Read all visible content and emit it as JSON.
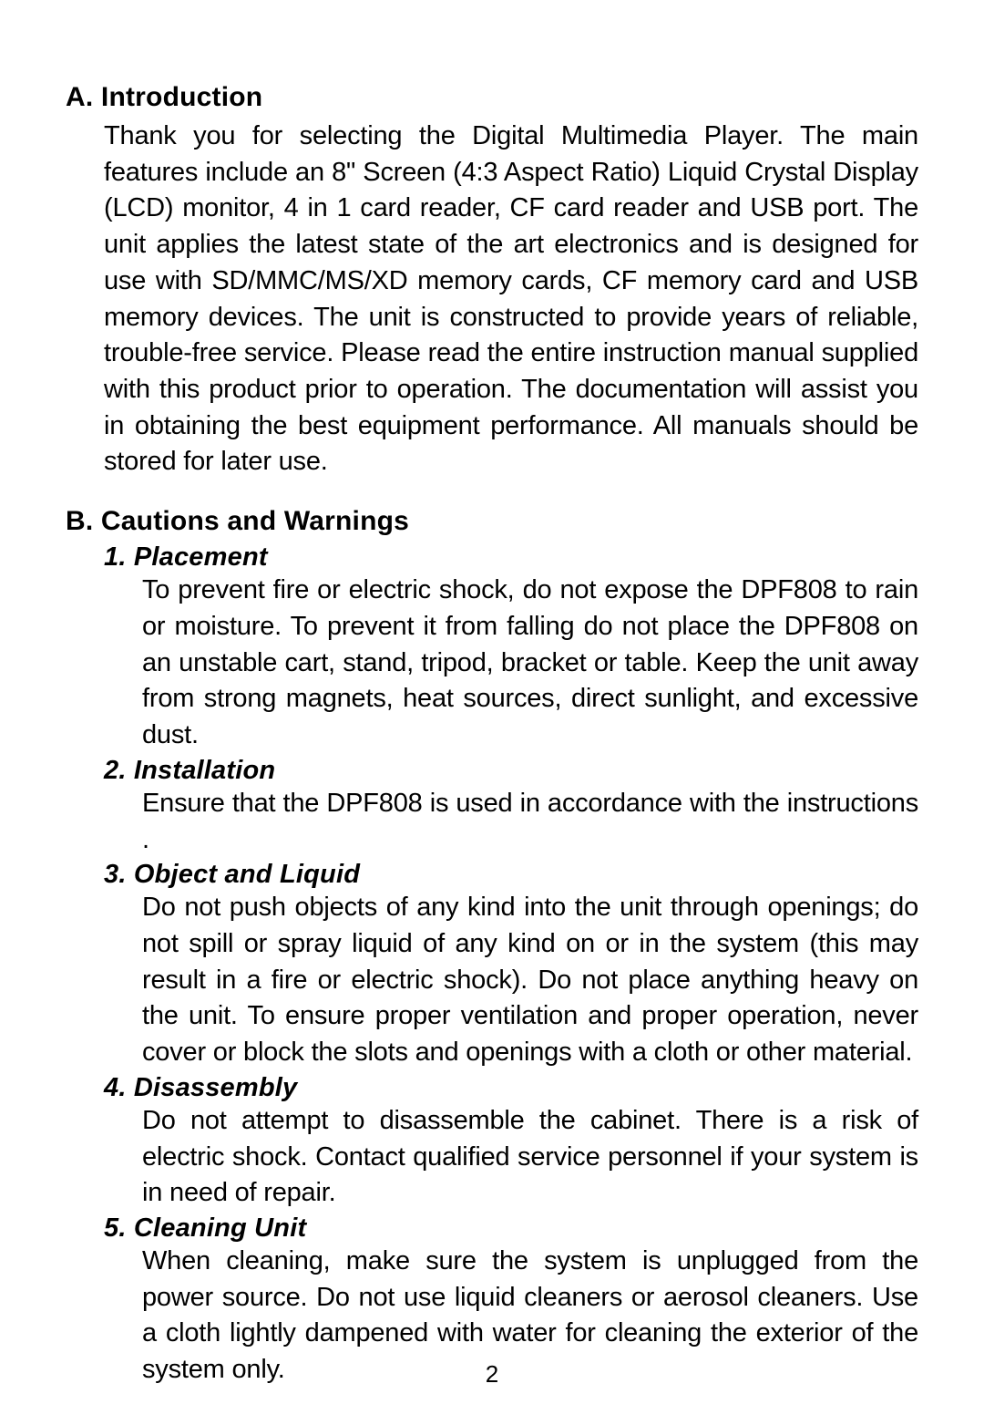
{
  "typography": {
    "heading_fontsize": 30,
    "subheading_fontsize": 29,
    "body_fontsize": 29,
    "page_number_fontsize": 26,
    "font_family": "Arial",
    "text_color": "#000000",
    "background_color": "#ffffff",
    "line_height": 1.37
  },
  "sectionA": {
    "heading": "A. Introduction",
    "body": "Thank you for selecting the Digital Multimedia Player. The main features include an 8\" Screen (4:3 Aspect Ratio) Liquid Crystal Display (LCD) monitor, 4 in 1 card reader, CF card reader and USB port. The unit applies the latest state of the art electronics and is designed for use with SD/MMC/MS/XD memory cards, CF memory card and USB memory devices. The unit is constructed to provide years of reliable, trouble-free service. Please read the entire instruction manual supplied with this product prior to operation. The documentation will assist you in obtaining  the best equipment performance.  All manuals should be stored for later use."
  },
  "sectionB": {
    "heading": "B. Cautions and Warnings",
    "items": [
      {
        "heading": "1. Placement",
        "body": "To prevent fire or electric shock, do not expose the DPF808 to rain or moisture. To prevent it from falling do not place the DPF808 on an unstable cart, stand, tripod, bracket or table. Keep the unit away from strong magnets, heat sources, direct sunlight, and excessive dust."
      },
      {
        "heading": "2. Installation",
        "body": "Ensure that the DPF808 is used in accordance with the instructions ."
      },
      {
        "heading": "3. Object and Liquid",
        "body": "Do not push objects of any kind into the unit through openings; do not spill or spray liquid of any kind on or in the system (this may result in a fire or electric shock).  Do not place anything heavy on the unit. To ensure proper ventilation and proper operation, never cover or block the slots and openings with a cloth or other material."
      },
      {
        "heading": "4. Disassembly",
        "body": "Do not attempt to disassemble the cabinet. There is a risk of electric shock. Contact qualified service personnel if your system is in need of repair."
      },
      {
        "heading": "5. Cleaning Unit",
        "body": "When cleaning, make sure the system is unplugged from the power source. Do not use liquid cleaners or aerosol cleaners. Use a cloth lightly dampened with water for cleaning the exterior of the system only."
      }
    ]
  },
  "pageNumber": "2"
}
